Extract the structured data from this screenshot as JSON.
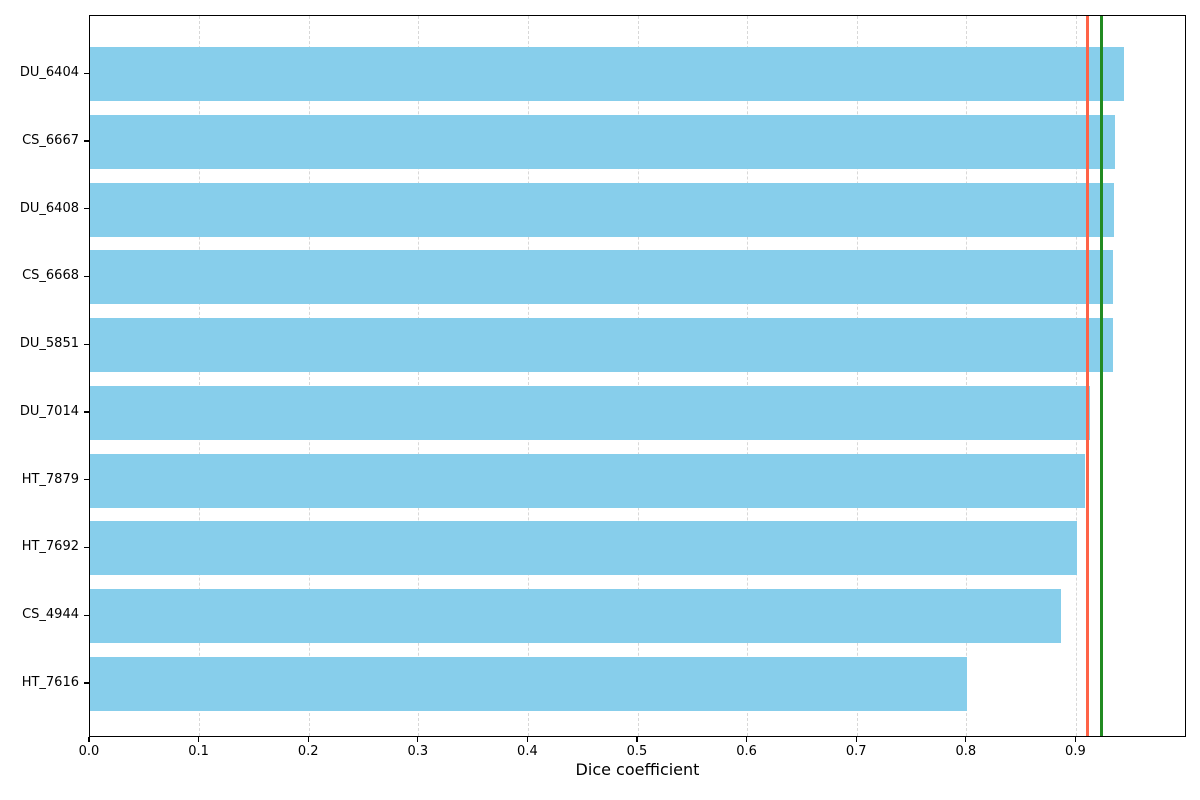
{
  "chart_data": {
    "type": "bar",
    "orientation": "horizontal",
    "title": "",
    "xlabel": "Dice coefficient",
    "ylabel": "",
    "categories": [
      "DU_6404",
      "CS_6667",
      "DU_6408",
      "CS_6668",
      "DU_5851",
      "DU_7014",
      "HT_7879",
      "HT_7692",
      "CS_4944",
      "HT_7616"
    ],
    "values": [
      0.943,
      0.935,
      0.934,
      0.933,
      0.933,
      0.912,
      0.908,
      0.901,
      0.886,
      0.8
    ],
    "xlim": [
      0.0,
      1.0
    ],
    "xticks": [
      0.0,
      0.1,
      0.2,
      0.3,
      0.4,
      0.5,
      0.6,
      0.7,
      0.8,
      0.9
    ],
    "xtick_decimals": 1,
    "grid": "vertical-dashed",
    "grid_color": "#d8d8d8",
    "legend": "none",
    "bar_color": "#87CEEB",
    "reference_lines": [
      {
        "name": "red-reference-line",
        "value": 0.91,
        "color": "#ff6347"
      },
      {
        "name": "green-reference-line",
        "value": 0.923,
        "color": "#228b22"
      }
    ]
  }
}
